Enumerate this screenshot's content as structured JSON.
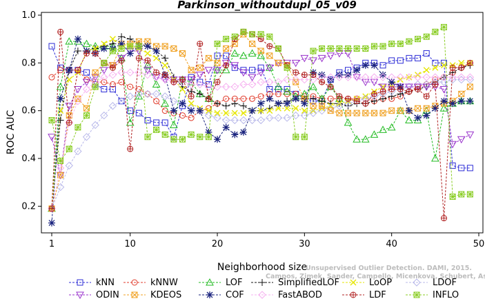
{
  "chart_data": {
    "type": "line",
    "title": "Parkinson_withoutdupl_05_v09",
    "xlabel": "Neighborhood size",
    "ylabel": "ROC AUC",
    "xlim": [
      1,
      50
    ],
    "ylim": [
      0.1,
      1.0
    ],
    "x_ticks": [
      1,
      10,
      20,
      30,
      40,
      50
    ],
    "y_ticks": [
      0.2,
      0.4,
      0.6,
      0.8,
      1.0
    ],
    "legend_position": "bottom",
    "grid": false,
    "watermark": [
      "Unsupervised Outlier Detection. DAMI, 2015.",
      "Campos, Zimek, Sander, Campello, Micenkova, Schubert, Assent, Houle"
    ],
    "series": [
      {
        "name": "kNN",
        "color": "#2b2bd6",
        "marker": "square",
        "x": [
          1,
          2,
          3,
          4,
          5,
          6,
          7,
          8,
          9,
          10,
          11,
          12,
          13,
          14,
          15,
          16,
          17,
          18,
          19,
          20,
          21,
          22,
          23,
          24,
          25,
          26,
          27,
          28,
          29,
          30,
          31,
          32,
          33,
          34,
          35,
          36,
          37,
          38,
          39,
          40,
          41,
          42,
          43,
          44,
          45,
          46,
          47,
          48,
          49
        ],
        "y": [
          0.87,
          0.78,
          0.77,
          0.77,
          0.76,
          0.71,
          0.69,
          0.69,
          0.64,
          0.6,
          0.59,
          0.56,
          0.55,
          0.55,
          0.49,
          0.62,
          0.74,
          0.72,
          0.71,
          0.83,
          0.83,
          0.78,
          0.77,
          0.77,
          0.78,
          0.69,
          0.69,
          0.69,
          0.67,
          0.65,
          0.64,
          0.64,
          0.73,
          0.76,
          0.77,
          0.78,
          0.8,
          0.8,
          0.79,
          0.81,
          0.81,
          0.82,
          0.82,
          0.84,
          0.8,
          0.8,
          0.37,
          0.36,
          0.36
        ]
      },
      {
        "name": "kNNW",
        "color": "#e03a2a",
        "marker": "circle",
        "x": [
          1,
          2,
          3,
          4,
          5,
          6,
          7,
          8,
          9,
          10,
          11,
          12,
          13,
          14,
          15,
          16,
          17,
          18,
          19,
          20,
          21,
          22,
          23,
          24,
          25,
          26,
          27,
          28,
          29,
          30,
          31,
          32,
          33,
          34,
          35,
          36,
          37,
          38,
          39,
          40,
          41,
          42,
          43,
          44,
          45,
          46,
          47,
          48,
          49
        ],
        "y": [
          0.74,
          0.77,
          0.77,
          0.77,
          0.73,
          0.72,
          0.72,
          0.71,
          0.72,
          0.7,
          0.69,
          0.67,
          0.64,
          0.6,
          0.59,
          0.58,
          0.57,
          0.6,
          0.61,
          0.63,
          0.65,
          0.65,
          0.65,
          0.65,
          0.66,
          0.67,
          0.67,
          0.67,
          0.67,
          0.66,
          0.66,
          0.65,
          0.65,
          0.65,
          0.65,
          0.65,
          0.65,
          0.64,
          0.65,
          0.65,
          0.66,
          0.68,
          0.7,
          0.71,
          0.73,
          0.74,
          0.76,
          0.78,
          0.8
        ]
      },
      {
        "name": "LOF",
        "color": "#22bb22",
        "marker": "triangle",
        "x": [
          1,
          2,
          3,
          4,
          5,
          6,
          7,
          8,
          9,
          10,
          11,
          12,
          13,
          14,
          15,
          16,
          17,
          18,
          19,
          20,
          21,
          22,
          23,
          24,
          25,
          26,
          27,
          28,
          29,
          30,
          31,
          32,
          33,
          34,
          35,
          36,
          37,
          38,
          39,
          40,
          41,
          42,
          43,
          44,
          45,
          46,
          47,
          48,
          49
        ],
        "y": [
          0.19,
          0.7,
          0.89,
          0.89,
          0.88,
          0.87,
          0.87,
          0.87,
          0.82,
          0.55,
          0.66,
          0.79,
          0.71,
          0.63,
          0.54,
          0.73,
          0.72,
          0.67,
          0.65,
          0.77,
          0.77,
          0.84,
          0.83,
          0.84,
          0.83,
          0.78,
          0.7,
          0.68,
          0.66,
          0.67,
          0.7,
          0.65,
          0.7,
          0.65,
          0.55,
          0.48,
          0.48,
          0.5,
          0.52,
          0.53,
          0.6,
          0.56,
          0.56,
          0.6,
          0.4,
          0.61,
          0.63,
          0.64,
          0.64
        ]
      },
      {
        "name": "SimplifiedLOF",
        "color": "#111111",
        "marker": "plus",
        "x": [
          1,
          2,
          3,
          4,
          5,
          6,
          7,
          8,
          9,
          10,
          11,
          12,
          13,
          14,
          15,
          16,
          17,
          18,
          19,
          20,
          21,
          22,
          23,
          24,
          25,
          26,
          27,
          28,
          29,
          30,
          31,
          32,
          33,
          34,
          35,
          36,
          37,
          38,
          39,
          40,
          41,
          42,
          43,
          44,
          45,
          46,
          47,
          48,
          49
        ],
        "y": [
          0.19,
          0.56,
          0.77,
          0.85,
          0.85,
          0.86,
          0.87,
          0.88,
          0.91,
          0.9,
          0.88,
          0.87,
          0.85,
          0.82,
          0.74,
          0.7,
          0.68,
          0.67,
          0.65,
          0.63,
          0.62,
          0.63,
          0.62,
          0.6,
          0.6,
          0.61,
          0.63,
          0.64,
          0.65,
          0.65,
          0.65,
          0.64,
          0.63,
          0.63,
          0.62,
          0.63,
          0.63,
          0.64,
          0.65,
          0.66,
          0.67,
          0.68,
          0.69,
          0.7,
          0.72,
          0.74,
          0.76,
          0.78,
          0.79
        ]
      },
      {
        "name": "LoOP",
        "color": "#e6e600",
        "marker": "cross",
        "x": [
          1,
          2,
          3,
          4,
          5,
          6,
          7,
          8,
          9,
          10,
          11,
          12,
          13,
          14,
          15,
          16,
          17,
          18,
          19,
          20,
          21,
          22,
          23,
          24,
          25,
          26,
          27,
          28,
          29,
          30,
          31,
          32,
          33,
          34,
          35,
          36,
          37,
          38,
          39,
          40,
          41,
          42,
          43,
          44,
          45,
          46,
          47,
          48,
          49
        ],
        "y": [
          0.19,
          0.6,
          0.73,
          0.76,
          0.85,
          0.86,
          0.88,
          0.9,
          0.88,
          0.87,
          0.86,
          0.84,
          0.82,
          0.79,
          0.73,
          0.69,
          0.63,
          0.61,
          0.6,
          0.59,
          0.59,
          0.59,
          0.59,
          0.6,
          0.6,
          0.6,
          0.61,
          0.61,
          0.61,
          0.6,
          0.6,
          0.61,
          0.62,
          0.63,
          0.64,
          0.65,
          0.66,
          0.68,
          0.7,
          0.71,
          0.73,
          0.74,
          0.75,
          0.77,
          0.78,
          0.79,
          0.79,
          0.8,
          0.8
        ]
      },
      {
        "name": "LDOF",
        "color": "#b8b8ea",
        "marker": "diamond",
        "x": [
          1,
          2,
          3,
          4,
          5,
          6,
          7,
          8,
          9,
          10,
          11,
          12,
          13,
          14,
          15,
          16,
          17,
          18,
          19,
          20,
          21,
          22,
          23,
          24,
          25,
          26,
          27,
          28,
          29,
          30,
          31,
          32,
          33,
          34,
          35,
          36,
          37,
          38,
          39,
          40,
          41,
          42,
          43,
          44,
          45,
          46,
          47,
          48,
          49
        ],
        "y": [
          0.19,
          0.28,
          0.37,
          0.43,
          0.49,
          0.54,
          0.58,
          0.62,
          0.64,
          0.66,
          0.67,
          0.67,
          0.67,
          0.66,
          0.64,
          0.63,
          0.61,
          0.6,
          0.58,
          0.57,
          0.56,
          0.56,
          0.56,
          0.56,
          0.56,
          0.57,
          0.57,
          0.57,
          0.58,
          0.58,
          0.59,
          0.6,
          0.61,
          0.62,
          0.63,
          0.64,
          0.65,
          0.66,
          0.67,
          0.68,
          0.69,
          0.7,
          0.71,
          0.71,
          0.72,
          0.72,
          0.73,
          0.73,
          0.73
        ]
      },
      {
        "name": "ODIN",
        "color": "#9a33cc",
        "marker": "triangle-down",
        "x": [
          1,
          2,
          3,
          4,
          5,
          6,
          7,
          8,
          9,
          10,
          11,
          12,
          13,
          14,
          15,
          16,
          17,
          18,
          19,
          20,
          21,
          22,
          23,
          24,
          25,
          26,
          27,
          28,
          29,
          30,
          31,
          32,
          33,
          34,
          35,
          36,
          37,
          38,
          39,
          40,
          41,
          42,
          43,
          44,
          45,
          46,
          47,
          48,
          49
        ],
        "y": [
          0.49,
          0.33,
          0.62,
          0.69,
          0.72,
          0.74,
          0.77,
          0.79,
          0.82,
          0.85,
          0.85,
          0.77,
          0.74,
          0.73,
          0.73,
          0.73,
          0.73,
          0.75,
          0.77,
          0.77,
          0.8,
          0.79,
          0.76,
          0.74,
          0.76,
          0.78,
          0.8,
          0.8,
          0.8,
          0.82,
          0.81,
          0.82,
          0.83,
          0.84,
          0.84,
          0.74,
          0.72,
          0.72,
          0.7,
          0.7,
          0.7,
          0.7,
          0.7,
          0.7,
          0.7,
          0.69,
          0.46,
          0.48,
          0.5
        ]
      },
      {
        "name": "KDEOS",
        "color": "#f0a020",
        "marker": "square-x",
        "x": [
          1,
          2,
          3,
          4,
          5,
          6,
          7,
          8,
          9,
          10,
          11,
          12,
          13,
          14,
          15,
          16,
          17,
          18,
          19,
          20,
          21,
          22,
          23,
          24,
          25,
          26,
          27,
          28,
          29,
          30,
          31,
          32,
          33,
          34,
          35,
          36,
          37,
          38,
          39,
          40,
          41,
          42,
          43,
          44,
          45,
          46,
          47,
          48,
          49
        ],
        "y": [
          0.19,
          0.33,
          0.58,
          0.65,
          0.61,
          0.76,
          0.8,
          0.79,
          0.88,
          0.88,
          0.89,
          0.89,
          0.87,
          0.87,
          0.86,
          0.84,
          0.77,
          0.78,
          0.82,
          0.8,
          0.86,
          0.88,
          0.92,
          0.88,
          0.85,
          0.83,
          0.8,
          0.79,
          0.72,
          0.65,
          0.62,
          0.62,
          0.6,
          0.59,
          0.59,
          0.59,
          0.59,
          0.59,
          0.59,
          0.6,
          0.6,
          0.6,
          0.61,
          0.61,
          0.62,
          0.63,
          0.64,
          0.67,
          0.7
        ]
      },
      {
        "name": "COF",
        "color": "#1a237e",
        "marker": "asterisk",
        "x": [
          1,
          2,
          3,
          4,
          5,
          6,
          7,
          8,
          9,
          10,
          11,
          12,
          13,
          14,
          15,
          16,
          17,
          18,
          19,
          20,
          21,
          22,
          23,
          24,
          25,
          26,
          27,
          28,
          29,
          30,
          31,
          32,
          33,
          34,
          35,
          36,
          37,
          38,
          39,
          40,
          41,
          42,
          43,
          44,
          45,
          46,
          47,
          48,
          49
        ],
        "y": [
          0.13,
          0.65,
          0.77,
          0.9,
          0.85,
          0.84,
          0.86,
          0.86,
          0.88,
          0.84,
          0.87,
          0.87,
          0.85,
          0.75,
          0.6,
          0.63,
          0.6,
          0.6,
          0.51,
          0.48,
          0.53,
          0.5,
          0.51,
          0.6,
          0.63,
          0.65,
          0.63,
          0.63,
          0.65,
          0.63,
          0.76,
          0.75,
          0.73,
          0.75,
          0.75,
          0.77,
          0.79,
          0.79,
          0.75,
          0.72,
          0.7,
          0.6,
          0.57,
          0.58,
          0.61,
          0.64,
          0.63,
          0.64,
          0.64
        ]
      },
      {
        "name": "FastABOD",
        "color": "#f6b0f0",
        "marker": "diamond",
        "x": [
          1,
          2,
          3,
          4,
          5,
          6,
          7,
          8,
          9,
          10,
          11,
          12,
          13,
          14,
          15,
          16,
          17,
          18,
          19,
          20,
          21,
          22,
          23,
          24,
          25,
          26,
          27,
          28,
          29,
          30,
          31,
          32,
          33,
          34,
          35,
          36,
          37,
          38,
          39,
          40,
          41,
          42,
          43,
          44,
          45,
          46,
          47,
          48,
          49
        ],
        "y": [
          0.19,
          0.36,
          0.55,
          0.64,
          0.69,
          0.72,
          0.74,
          0.75,
          0.76,
          0.76,
          0.76,
          0.75,
          0.74,
          0.73,
          0.72,
          0.72,
          0.71,
          0.71,
          0.7,
          0.7,
          0.7,
          0.7,
          0.71,
          0.71,
          0.72,
          0.72,
          0.72,
          0.73,
          0.73,
          0.73,
          0.73,
          0.74,
          0.74,
          0.74,
          0.74,
          0.74,
          0.74,
          0.74,
          0.74,
          0.74,
          0.74,
          0.74,
          0.74,
          0.74,
          0.74,
          0.74,
          0.74,
          0.74,
          0.74
        ]
      },
      {
        "name": "LDF",
        "color": "#b02020",
        "marker": "circle-plus",
        "x": [
          1,
          2,
          3,
          4,
          5,
          6,
          7,
          8,
          9,
          10,
          11,
          12,
          13,
          14,
          15,
          16,
          17,
          18,
          19,
          20,
          21,
          22,
          23,
          24,
          25,
          26,
          27,
          28,
          29,
          30,
          31,
          32,
          33,
          34,
          35,
          36,
          37,
          38,
          39,
          40,
          41,
          42,
          43,
          44,
          45,
          46,
          47,
          48,
          49
        ],
        "y": [
          0.19,
          0.93,
          0.55,
          0.77,
          0.84,
          0.84,
          0.8,
          0.78,
          0.81,
          0.44,
          0.82,
          0.81,
          0.76,
          0.75,
          0.72,
          0.73,
          0.66,
          0.88,
          0.65,
          0.72,
          0.79,
          0.9,
          0.93,
          0.92,
          0.9,
          0.87,
          0.86,
          0.79,
          0.76,
          0.75,
          0.75,
          0.72,
          0.7,
          0.66,
          0.65,
          0.64,
          0.63,
          0.67,
          0.68,
          0.69,
          0.69,
          0.68,
          0.69,
          0.66,
          0.71,
          0.15,
          0.78,
          0.78,
          0.8
        ]
      },
      {
        "name": "INFLO",
        "color": "#88cc22",
        "marker": "star-box",
        "x": [
          1,
          2,
          3,
          4,
          5,
          6,
          7,
          8,
          9,
          10,
          11,
          12,
          13,
          14,
          15,
          16,
          17,
          18,
          19,
          20,
          21,
          22,
          23,
          24,
          25,
          26,
          27,
          28,
          29,
          30,
          31,
          32,
          33,
          34,
          35,
          36,
          37,
          38,
          39,
          40,
          41,
          42,
          43,
          44,
          45,
          46,
          47,
          48,
          49
        ],
        "y": [
          0.56,
          0.39,
          0.44,
          0.53,
          0.58,
          0.7,
          0.8,
          0.85,
          0.86,
          0.87,
          0.87,
          0.49,
          0.52,
          0.5,
          0.48,
          0.48,
          0.5,
          0.49,
          0.49,
          0.88,
          0.9,
          0.91,
          0.93,
          0.92,
          0.92,
          0.91,
          0.86,
          0.78,
          0.49,
          0.49,
          0.85,
          0.86,
          0.86,
          0.86,
          0.86,
          0.86,
          0.86,
          0.87,
          0.87,
          0.88,
          0.88,
          0.89,
          0.9,
          0.91,
          0.93,
          0.95,
          0.24,
          0.25,
          0.25
        ]
      }
    ]
  }
}
